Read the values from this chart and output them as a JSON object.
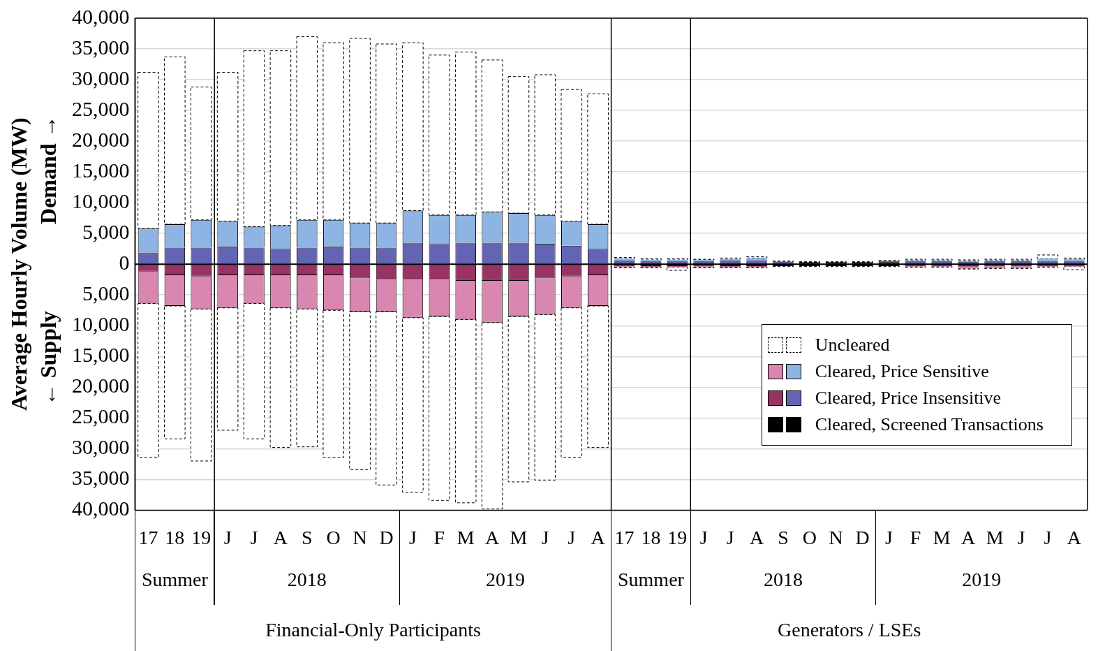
{
  "chart_data": {
    "type": "bar",
    "stacked": true,
    "ylabel": "Average Hourly Volume (MW)",
    "categories": [
      "17",
      "18",
      "19",
      "J",
      "J",
      "A",
      "S",
      "O",
      "N",
      "D",
      "J",
      "F",
      "M",
      "A",
      "M",
      "J",
      "J",
      "A",
      "17",
      "18",
      "19",
      "J",
      "J",
      "A",
      "S",
      "O",
      "N",
      "D",
      "J",
      "F",
      "M",
      "A",
      "M",
      "J",
      "J",
      "A"
    ],
    "ylim": [
      -40000,
      40000
    ],
    "yticks": [
      {
        "value": -40000,
        "label": "40,000"
      },
      {
        "value": -35000,
        "label": "35,000"
      },
      {
        "value": -30000,
        "label": "30,000"
      },
      {
        "value": -25000,
        "label": "25,000"
      },
      {
        "value": -20000,
        "label": "20,000"
      },
      {
        "value": -15000,
        "label": "15,000"
      },
      {
        "value": -10000,
        "label": "10,000"
      },
      {
        "value": -5000,
        "label": "5,000"
      },
      {
        "value": 0,
        "label": "0"
      },
      {
        "value": 5000,
        "label": "5,000"
      },
      {
        "value": 10000,
        "label": "10,000"
      },
      {
        "value": 15000,
        "label": "15,000"
      },
      {
        "value": 20000,
        "label": "20,000"
      },
      {
        "value": 25000,
        "label": "25,000"
      },
      {
        "value": 30000,
        "label": "30,000"
      },
      {
        "value": 35000,
        "label": "35,000"
      },
      {
        "value": 40000,
        "label": "40,000"
      }
    ],
    "grid": "y",
    "legend": "bottom right",
    "series": [
      {
        "color": "#000000",
        "values": [
          null,
          null,
          null,
          null,
          null,
          null,
          null,
          null,
          null,
          null,
          null,
          null,
          null,
          null,
          null,
          null,
          null,
          null,
          -200,
          -300,
          -300,
          -200,
          -300,
          -300,
          -300,
          -300,
          -300,
          -300,
          -300,
          -200,
          -200,
          -200,
          -200,
          -200,
          -200,
          -200
        ]
      },
      {
        "name": "Cleared, Screened Transactions",
        "color": "#000000",
        "values": [
          null,
          null,
          null,
          null,
          null,
          null,
          null,
          null,
          null,
          null,
          null,
          null,
          null,
          null,
          null,
          null,
          null,
          null,
          200,
          200,
          200,
          200,
          200,
          200,
          200,
          300,
          300,
          300,
          300,
          200,
          200,
          200,
          200,
          200,
          200,
          200
        ]
      },
      {
        "color": "#993366",
        "values": [
          -1200,
          -1800,
          -2000,
          -1800,
          -1800,
          -1800,
          -1800,
          -1800,
          -2300,
          -2500,
          -2500,
          -2500,
          -2700,
          -2700,
          -2700,
          -2300,
          -2000,
          -1800,
          -100,
          -100,
          -100,
          -100,
          -100,
          -100,
          0,
          0,
          0,
          0,
          0,
          -100,
          -100,
          -200,
          -100,
          -100,
          -100,
          -100
        ]
      },
      {
        "name": "Cleared, Price Insensitive",
        "color": "#6464b4",
        "values": [
          1900,
          2700,
          2700,
          2900,
          2700,
          2500,
          2700,
          2900,
          2700,
          2700,
          3500,
          3300,
          3500,
          3500,
          3500,
          3200,
          3000,
          2500,
          400,
          300,
          300,
          300,
          400,
          400,
          200,
          0,
          0,
          0,
          200,
          300,
          300,
          200,
          300,
          300,
          300,
          300
        ]
      },
      {
        "color": "#d987b0",
        "values": [
          -5200,
          -5000,
          -5300,
          -5300,
          -4600,
          -5300,
          -5500,
          -5700,
          -5400,
          -5200,
          -6200,
          -6000,
          -6300,
          -6800,
          -5800,
          -5900,
          -5100,
          -5000,
          -200,
          -100,
          -100,
          -200,
          -100,
          -100,
          0,
          0,
          0,
          0,
          0,
          -100,
          -100,
          -300,
          -300,
          -300,
          -100,
          -100
        ]
      },
      {
        "name": "Cleared, Price Sensitive",
        "color": "#8db4e2",
        "values": [
          3900,
          3800,
          4500,
          4100,
          3400,
          3800,
          4500,
          4300,
          4000,
          4000,
          5200,
          4700,
          4500,
          5000,
          4800,
          4800,
          4000,
          4000,
          300,
          200,
          200,
          200,
          200,
          400,
          0,
          0,
          0,
          0,
          0,
          100,
          100,
          100,
          100,
          100,
          400,
          300
        ]
      },
      {
        "color": "#000000",
        "line_style": "dashed",
        "values": [
          -25000,
          -21600,
          -24700,
          -19900,
          -22000,
          -22700,
          -22400,
          -23900,
          -25700,
          -28200,
          -28400,
          -29900,
          -29800,
          -30300,
          -26900,
          -26900,
          -24300,
          -23000,
          -100,
          -100,
          -500,
          -100,
          -100,
          -100,
          -100,
          -100,
          -100,
          -100,
          -100,
          -100,
          -100,
          -100,
          -100,
          -100,
          -100,
          -500
        ]
      },
      {
        "name": "Uncleared",
        "color": "#000000",
        "line_style": "dashed",
        "values": [
          25400,
          27200,
          21600,
          24200,
          28600,
          28400,
          29800,
          28800,
          30000,
          29100,
          27300,
          26000,
          26500,
          24700,
          22200,
          22800,
          21400,
          21200,
          200,
          200,
          200,
          100,
          200,
          200,
          100,
          100,
          100,
          100,
          100,
          200,
          200,
          200,
          200,
          200,
          600,
          200
        ]
      }
    ],
    "annotations": [
      "← Supply",
      "Demand →",
      "Summer",
      "2018",
      "2019",
      "Summer",
      "2018",
      "2019",
      "Financial-Only Participants",
      "Generators / LSEs"
    ]
  }
}
